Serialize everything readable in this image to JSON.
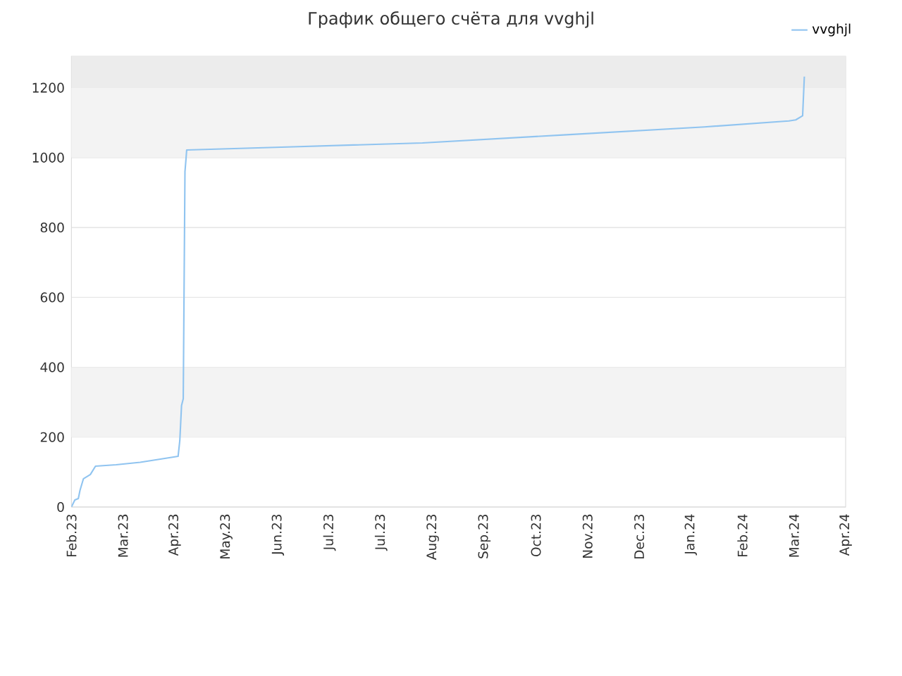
{
  "chart_data": {
    "type": "line",
    "title": "График общего счёта для vvghjl",
    "xlim": [
      "2023-02-01",
      "2024-04-26"
    ],
    "xticks": [
      {
        "value": "2023-02-01",
        "label": "Feb.23"
      },
      {
        "value": "2023-03-03",
        "label": "Mar.23"
      },
      {
        "value": "2023-04-02",
        "label": "Apr.23"
      },
      {
        "value": "2023-05-02",
        "label": "May.23"
      },
      {
        "value": "2023-06-01",
        "label": "Jun.23"
      },
      {
        "value": "2023-07-01",
        "label": "Jul.23"
      },
      {
        "value": "2023-07-31",
        "label": "Jul.23"
      },
      {
        "value": "2023-08-30",
        "label": "Aug.23"
      },
      {
        "value": "2023-09-29",
        "label": "Sep.23"
      },
      {
        "value": "2023-10-29",
        "label": "Oct.23"
      },
      {
        "value": "2023-11-28",
        "label": "Nov.23"
      },
      {
        "value": "2023-12-28",
        "label": "Dec.23"
      },
      {
        "value": "2024-01-27",
        "label": "Jan.24"
      },
      {
        "value": "2024-02-26",
        "label": "Feb.24"
      },
      {
        "value": "2024-03-27",
        "label": "Mar.24"
      },
      {
        "value": "2024-04-26",
        "label": "Apr.24"
      }
    ],
    "ylim": [
      0,
      1290
    ],
    "yticks": [
      0,
      200,
      400,
      600,
      800,
      1000,
      1200
    ],
    "grid": "y",
    "legend": "top right",
    "marker": "none",
    "line_style": "solid",
    "bands": [
      {
        "axis": "y",
        "from": 200,
        "to": 400,
        "color": "#f3f3f3"
      },
      {
        "axis": "y",
        "from": 1000,
        "to": 1200,
        "color": "#f3f3f3"
      },
      {
        "axis": "y",
        "from": 1200,
        "to": 1290,
        "color": "#ececec"
      }
    ],
    "series": [
      {
        "name": "vvghjl",
        "color": "#90c4f0",
        "x": [
          "2023-02-01",
          "2023-02-03",
          "2023-02-05",
          "2023-02-06",
          "2023-02-08",
          "2023-02-12",
          "2023-02-15",
          "2023-02-27",
          "2023-03-13",
          "2023-03-26",
          "2023-04-04",
          "2023-04-05",
          "2023-04-06",
          "2023-04-07",
          "2023-04-08",
          "2023-04-08T12:00",
          "2023-04-09",
          "2023-06-03",
          "2023-08-24",
          "2023-11-14",
          "2024-02-04",
          "2024-03-24",
          "2024-03-28",
          "2024-04-01",
          "2024-04-02"
        ],
        "values": [
          0,
          20,
          24,
          48,
          81,
          93,
          117,
          121,
          128,
          138,
          145,
          190,
          290,
          310,
          960,
          990,
          1022,
          1030,
          1042,
          1065,
          1088,
          1105,
          1108,
          1120,
          1232
        ]
      }
    ]
  }
}
